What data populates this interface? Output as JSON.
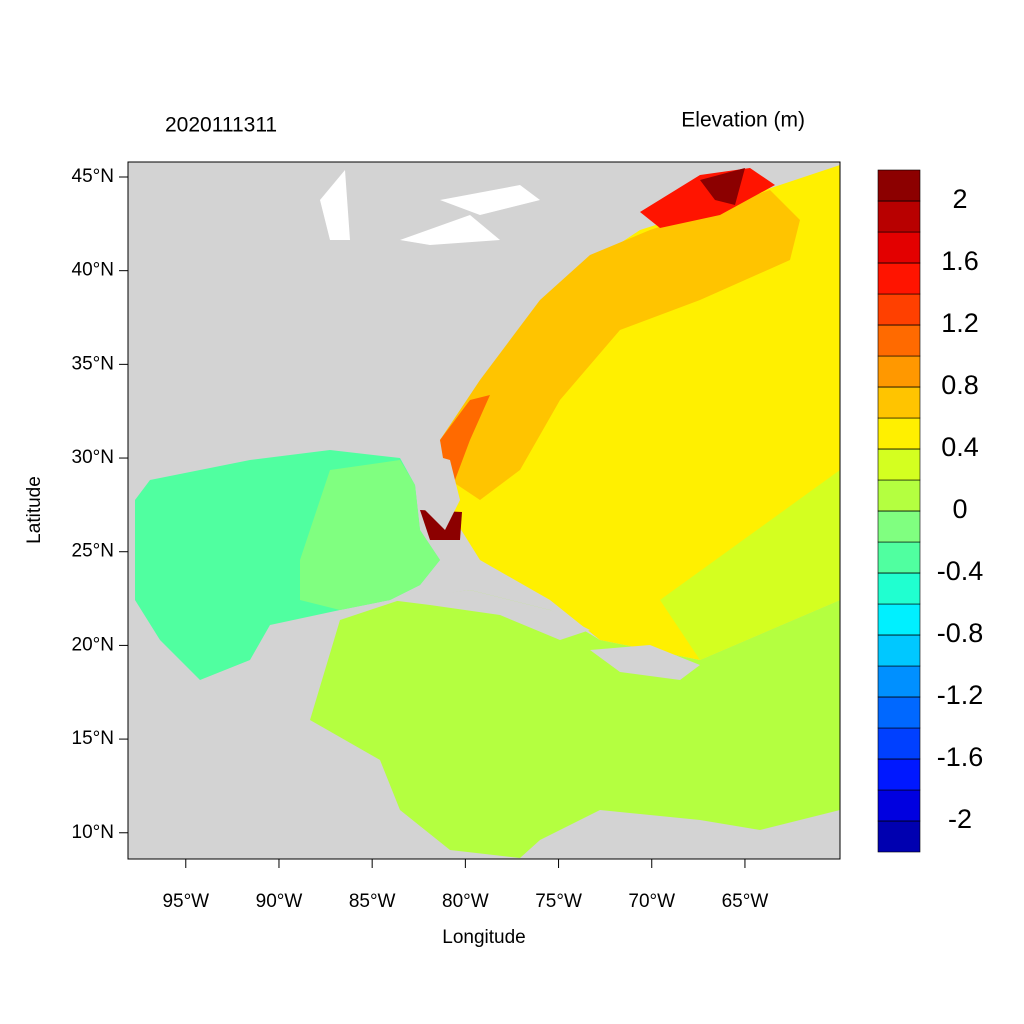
{
  "chart_data": {
    "type": "map",
    "title": "2020111311",
    "subtitle": "Elevation (m)",
    "x_label": "Longitude",
    "y_label": "Latitude",
    "xlim": [
      -98.1,
      -59.9
    ],
    "ylim": [
      8.6,
      45.8
    ],
    "xticks": [
      {
        "value": -95,
        "label": "95°W"
      },
      {
        "value": -90,
        "label": "90°W"
      },
      {
        "value": -85,
        "label": "85°W"
      },
      {
        "value": -80,
        "label": "80°W"
      },
      {
        "value": -75,
        "label": "75°W"
      },
      {
        "value": -70,
        "label": "70°W"
      },
      {
        "value": -65,
        "label": "65°W"
      }
    ],
    "yticks": [
      {
        "value": 10,
        "label": "10°N"
      },
      {
        "value": 15,
        "label": "15°N"
      },
      {
        "value": 20,
        "label": "20°N"
      },
      {
        "value": 25,
        "label": "25°N"
      },
      {
        "value": 30,
        "label": "30°N"
      },
      {
        "value": 35,
        "label": "35°N"
      },
      {
        "value": 40,
        "label": "40°N"
      },
      {
        "value": 45,
        "label": "45°N"
      }
    ],
    "colorbar": {
      "levels": [
        -2,
        -1.8,
        -1.6,
        -1.4,
        -1.2,
        -1,
        -0.8,
        -0.6,
        -0.4,
        -0.2,
        0,
        0.2,
        0.4,
        0.6,
        0.8,
        1,
        1.2,
        1.4,
        1.6,
        1.8,
        2
      ],
      "colors": [
        "#0000b0",
        "#0000e0",
        "#0018ff",
        "#0040ff",
        "#0068ff",
        "#0090ff",
        "#00c8ff",
        "#00f0ff",
        "#20ffd0",
        "#50ffa0",
        "#80ff80",
        "#b4ff40",
        "#d4ff20",
        "#fff000",
        "#ffc400",
        "#ff9800",
        "#ff6a00",
        "#ff4000",
        "#ff1400",
        "#e30000",
        "#b80000",
        "#8c0000"
      ],
      "ticks": [
        -2,
        -1.6,
        -1.2,
        -0.8,
        -0.4,
        0,
        0.4,
        0.8,
        1.2,
        1.6,
        2
      ]
    }
  }
}
